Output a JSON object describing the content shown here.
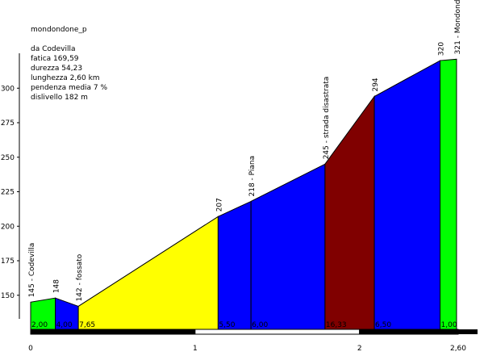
{
  "chart_data": {
    "type": "area",
    "title": "mondondone_p",
    "info_lines": [
      "da Codevilla",
      "fatica 169,59",
      "durezza 54,23",
      "lunghezza 2,60 km",
      "pendenza media 7 %",
      "dislivello 182 m"
    ],
    "ylim": [
      125,
      325
    ],
    "yticks": [
      {
        "value": 150,
        "label": "150"
      },
      {
        "value": 175,
        "label": "175"
      },
      {
        "value": 200,
        "label": "200"
      },
      {
        "value": 225,
        "label": "225"
      },
      {
        "value": 250,
        "label": "250"
      },
      {
        "value": 275,
        "label": "275"
      },
      {
        "value": 300,
        "label": "300"
      }
    ],
    "xlim": [
      0,
      2.6
    ],
    "xticks": [
      {
        "value": 0,
        "label": "0"
      },
      {
        "value": 1,
        "label": "1"
      },
      {
        "value": 2,
        "label": "2"
      },
      {
        "value": 2.6,
        "label": "2,60"
      }
    ],
    "points": [
      {
        "x": 0.0,
        "y": 145,
        "label": "145 - Codevilla"
      },
      {
        "x": 0.15,
        "y": 148,
        "label": "148"
      },
      {
        "x": 0.29,
        "y": 142,
        "label": "142 - fossato"
      },
      {
        "x": 1.14,
        "y": 207,
        "label": "207"
      },
      {
        "x": 1.34,
        "y": 218,
        "label": "218 - Piana"
      },
      {
        "x": 1.79,
        "y": 245,
        "label": "245 - strada disastrata"
      },
      {
        "x": 2.09,
        "y": 294,
        "label": "294"
      },
      {
        "x": 2.49,
        "y": 320,
        "label": "320"
      },
      {
        "x": 2.59,
        "y": 321,
        "label": "321 - Mondondone"
      }
    ],
    "segments": [
      {
        "grade": "2,00",
        "color": "#00ff00"
      },
      {
        "grade": "4,00",
        "color": "#0000ff"
      },
      {
        "grade": "7,65",
        "color": "#ffff00"
      },
      {
        "grade": "5,50",
        "color": "#0000ff"
      },
      {
        "grade": "6,00",
        "color": "#0000ff"
      },
      {
        "grade": "16,33",
        "color": "#800000"
      },
      {
        "grade": "6,50",
        "color": "#0000ff"
      },
      {
        "grade": "1,00",
        "color": "#00ff00"
      }
    ],
    "km_bar_colors": [
      "#000000",
      "#ffffff"
    ]
  }
}
